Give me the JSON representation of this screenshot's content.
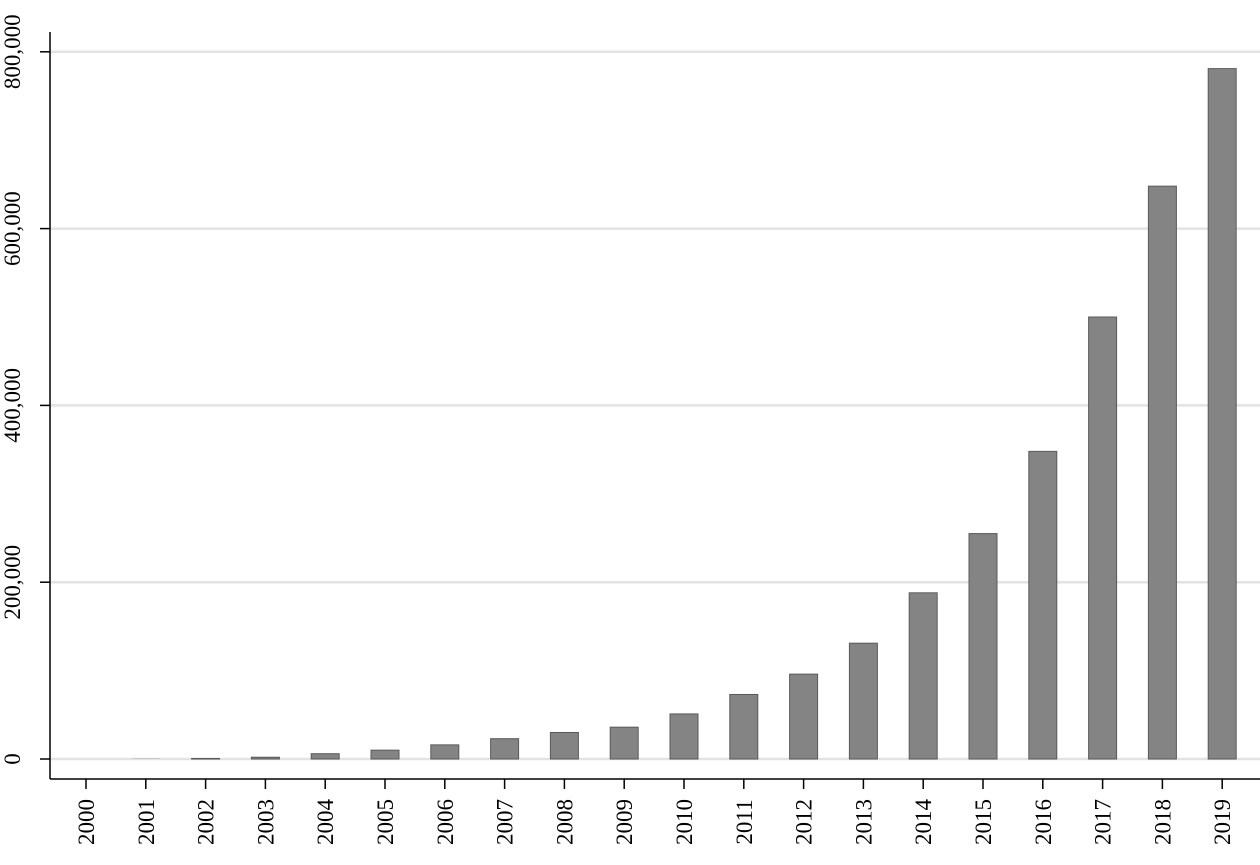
{
  "chart_data": {
    "type": "bar",
    "title": "",
    "xlabel": "",
    "ylabel": "",
    "categories": [
      "2000",
      "2001",
      "2002",
      "2003",
      "2004",
      "2005",
      "2006",
      "2007",
      "2008",
      "2009",
      "2010",
      "2011",
      "2012",
      "2013",
      "2014",
      "2015",
      "2016",
      "2017",
      "2018",
      "2019"
    ],
    "series": [
      {
        "values": [
          0,
          300,
          600,
          2000,
          6000,
          10000,
          16000,
          23000,
          30000,
          36000,
          51000,
          73000,
          96000,
          131000,
          188000,
          255000,
          348000,
          500000,
          648000,
          781000
        ]
      }
    ],
    "ylim": [
      0,
      820000
    ],
    "yticks": [
      0,
      200000,
      400000,
      600000,
      800000
    ],
    "ytick_labels": [
      "0",
      "200,000",
      "400,000",
      "600,000",
      "800,000"
    ],
    "grid": "horizontal",
    "legend": "none",
    "colors": {
      "bar_fill": "#848484",
      "bar_stroke": "#5a5a5a",
      "grid": "#e3e3e3",
      "axis": "#000000"
    }
  }
}
